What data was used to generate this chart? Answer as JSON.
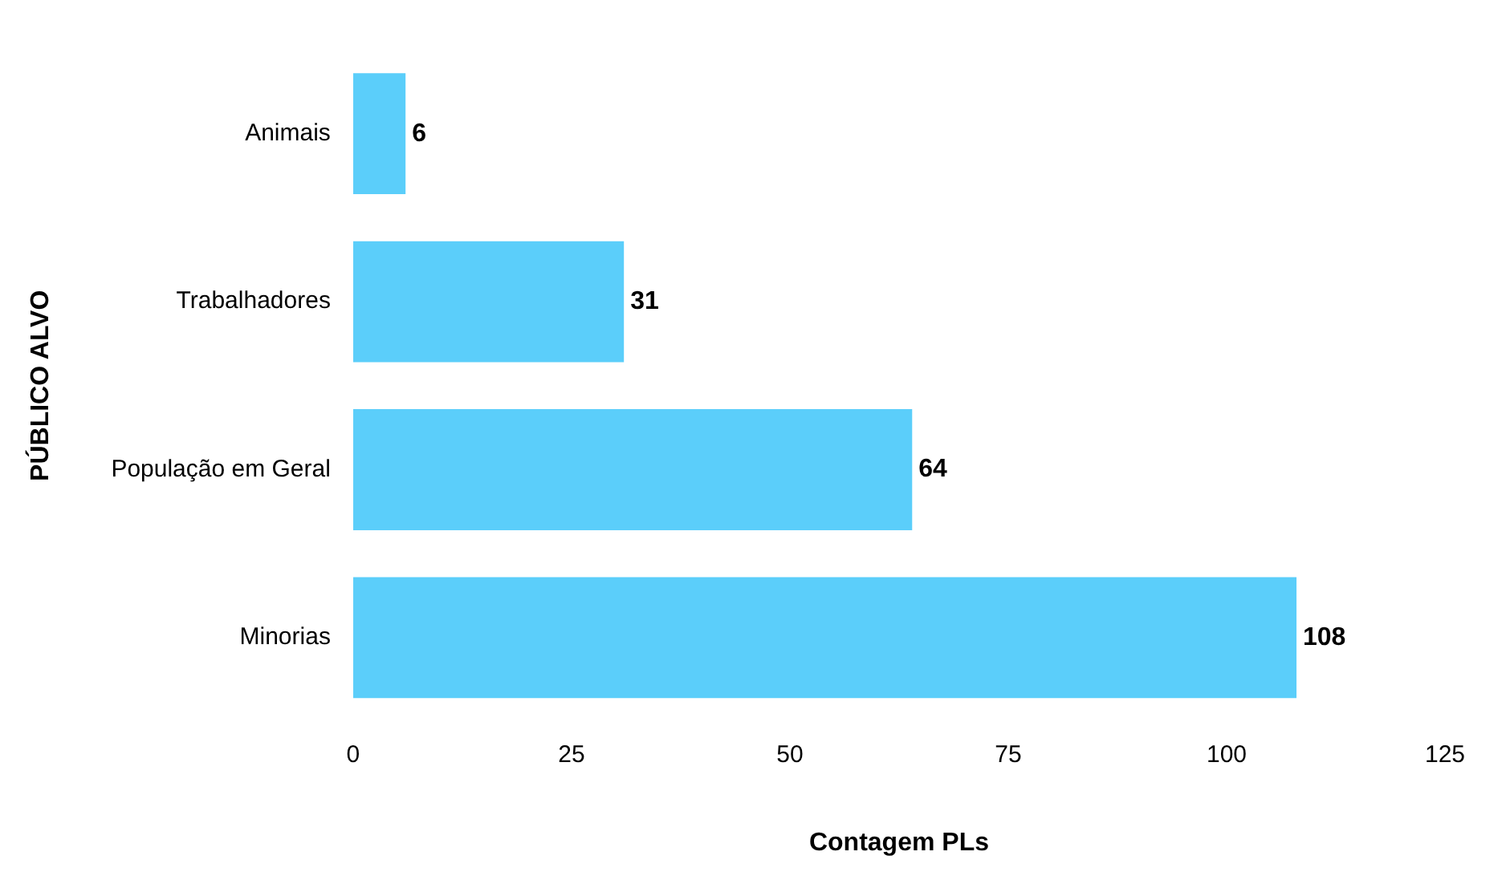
{
  "chart_data": {
    "type": "bar",
    "orientation": "horizontal",
    "xlabel": "Contagem PLs",
    "ylabel": "PÚBLICO ALVO",
    "categories": [
      "Animais",
      "Trabalhadores",
      "População em Geral",
      "Minorias"
    ],
    "values": [
      6,
      31,
      64,
      108
    ],
    "color": "#5bcefa",
    "xlim": [
      0,
      125
    ],
    "xticks": [
      0,
      25,
      50,
      75,
      100,
      125
    ],
    "grid": false,
    "legend": false,
    "data_labels": true
  }
}
